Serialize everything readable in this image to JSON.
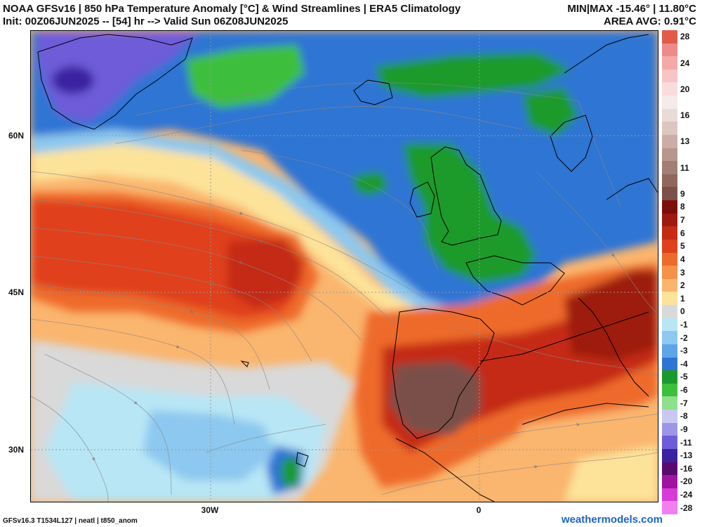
{
  "header": {
    "title_line1": "NOAA GFSv16 | 850 hPa Temperature Anomaly [°C] & Wind Streamlines | ERA5 Climatology",
    "title_line2": "Init: 00Z06JUN2025 -- [54] hr --> Valid Sun 06Z08JUN2025",
    "minmax": "MIN|MAX -15.46° | 11.80°C",
    "area_avg": "AREA AVG: 0.91°C"
  },
  "axes": {
    "lat_labels": [
      "60N",
      "45N",
      "30N"
    ],
    "lon_labels": [
      "30W",
      "0"
    ]
  },
  "colorbar": {
    "levels": [
      {
        "label": "28",
        "color": "#e35b48"
      },
      {
        "label": "",
        "color": "#ee8a8a"
      },
      {
        "label": "24",
        "color": "#f4a9a9"
      },
      {
        "label": "",
        "color": "#f8c4c4"
      },
      {
        "label": "20",
        "color": "#fadcdc"
      },
      {
        "label": "",
        "color": "#f4ebeb"
      },
      {
        "label": "16",
        "color": "#e9dcd8"
      },
      {
        "label": "",
        "color": "#dcc6c0"
      },
      {
        "label": "13",
        "color": "#c9ada6"
      },
      {
        "label": "",
        "color": "#b7968c"
      },
      {
        "label": "11",
        "color": "#a37e74"
      },
      {
        "label": "",
        "color": "#8f675d"
      },
      {
        "label": "9",
        "color": "#7a5048"
      },
      {
        "label": "8",
        "color": "#7d0f0a"
      },
      {
        "label": "7",
        "color": "#9e1a10"
      },
      {
        "label": "6",
        "color": "#c52a14"
      },
      {
        "label": "5",
        "color": "#e0401c"
      },
      {
        "label": "4",
        "color": "#ee6a2a"
      },
      {
        "label": "3",
        "color": "#f59148"
      },
      {
        "label": "2",
        "color": "#fab56e"
      },
      {
        "label": "1",
        "color": "#fde39a"
      },
      {
        "label": "0",
        "color": "#d9d9d9"
      },
      {
        "label": "-1",
        "color": "#b8e6f5"
      },
      {
        "label": "-2",
        "color": "#8cc8ef"
      },
      {
        "label": "-3",
        "color": "#5ea4e6"
      },
      {
        "label": "-4",
        "color": "#2f74d4"
      },
      {
        "label": "-5",
        "color": "#1a9a2a"
      },
      {
        "label": "-6",
        "color": "#3cbf3c"
      },
      {
        "label": "-7",
        "color": "#8ee08a"
      },
      {
        "label": "-8",
        "color": "#c8c8f0"
      },
      {
        "label": "-9",
        "color": "#9c96e8"
      },
      {
        "label": "-11",
        "color": "#6e5cd8"
      },
      {
        "label": "-13",
        "color": "#3a22a0"
      },
      {
        "label": "-16",
        "color": "#5a0a6e"
      },
      {
        "label": "-20",
        "color": "#a014a0"
      },
      {
        "label": "-24",
        "color": "#d83cd8"
      },
      {
        "label": "-28",
        "color": "#f080f0"
      }
    ]
  },
  "footer": {
    "left": "GFSv16.3 T1534L127 | neatl | t850_anom",
    "right": "weathermodels.com"
  }
}
